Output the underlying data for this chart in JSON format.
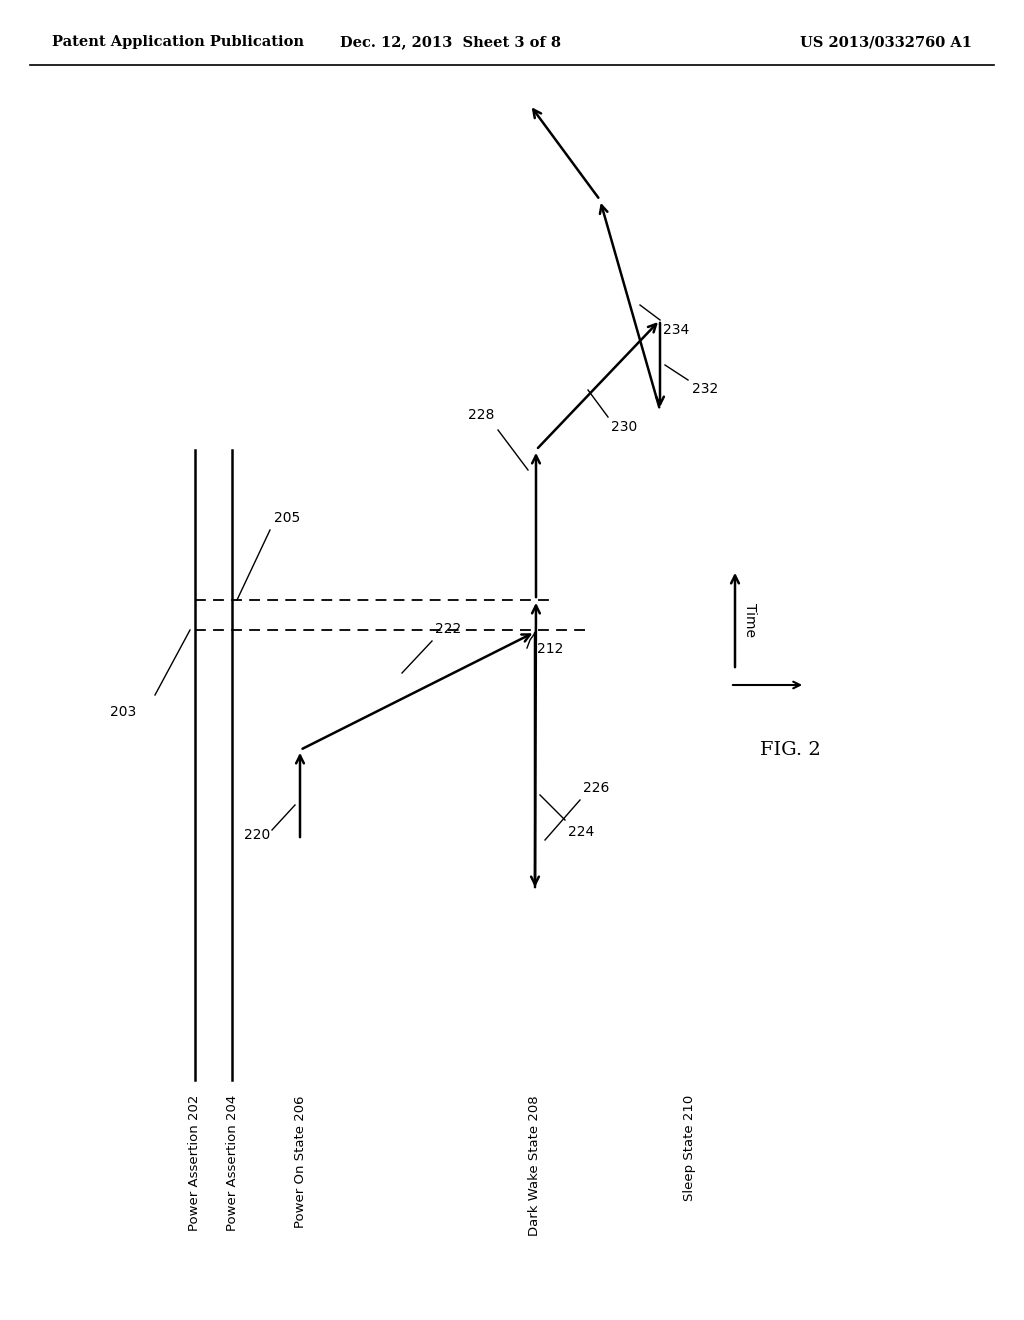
{
  "bg_color": "#ffffff",
  "header_left": "Patent Application Publication",
  "header_mid": "Dec. 12, 2013  Sheet 3 of 8",
  "header_right": "US 2013/0332760 A1",
  "fig_label": "FIG. 2",
  "time_label": "Time",
  "label_202": "Power Assertion 202",
  "label_204": "Power Assertion 204",
  "label_206": "Power On State 206",
  "label_208": "Dark Wake State 208",
  "label_210": "Sleep State 210",
  "ann_203": "203",
  "ann_205": "205",
  "ann_212": "212",
  "ann_220": "220",
  "ann_222": "222",
  "ann_224": "224",
  "ann_226": "226",
  "ann_228": "228",
  "ann_230": "230",
  "ann_232": "232",
  "ann_234": "234"
}
